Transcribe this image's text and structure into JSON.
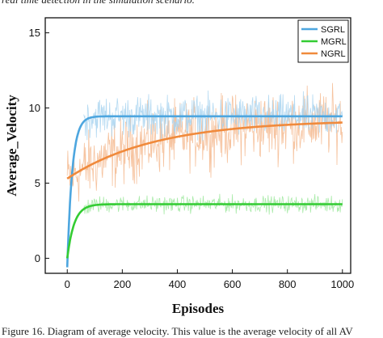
{
  "top_caption": "real time detection in the simulation scenario.",
  "bottom_caption": "Figure 16. Diagram of average velocity. This value is the average velocity of all AV",
  "chart_data": {
    "type": "line",
    "xlabel": "Episodes",
    "ylabel": "Average_Velocity",
    "xlim": [
      -80,
      1030
    ],
    "ylim": [
      -1,
      16
    ],
    "xticks": [
      0,
      200,
      400,
      600,
      800,
      1000
    ],
    "yticks": [
      0,
      5,
      10,
      15
    ],
    "legend_position": "top-right",
    "series": [
      {
        "name": "SGRL",
        "color": "#4da6df",
        "raw_color": "#a8d4f0",
        "start": -0.6,
        "plateau": 9.45,
        "tau": 18,
        "noise": 1.1,
        "raw_from": 60,
        "smooth": "exponential"
      },
      {
        "name": "MGRL",
        "color": "#33cc33",
        "raw_color": "#9be89b",
        "start": 0.0,
        "plateau": 3.6,
        "tau": 25,
        "noise": 0.45,
        "raw_from": 60,
        "smooth": "exponential"
      },
      {
        "name": "NGRL",
        "color": "#f08a3c",
        "raw_color": "#f4b98e",
        "start": 5.3,
        "plateau": 9.2,
        "tau": 320,
        "noise": 1.8,
        "raw_from": 0,
        "smooth": "exponential"
      }
    ]
  }
}
